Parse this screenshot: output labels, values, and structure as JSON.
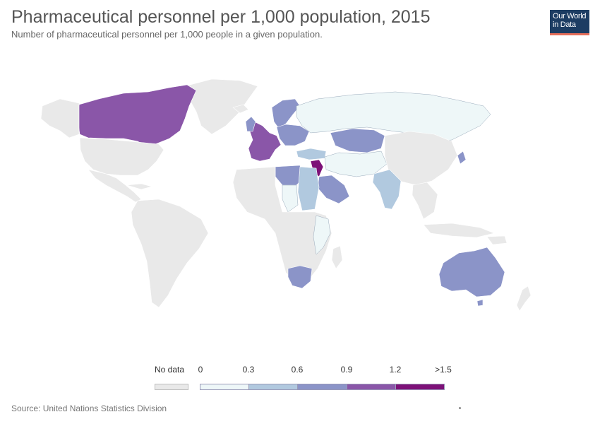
{
  "title": "Pharmaceutical personnel per 1,000 population, 2015",
  "subtitle": "Number of pharmaceutical personnel per 1,000 people in a given population.",
  "logo": {
    "line1": "Our World",
    "line2": "in Data"
  },
  "legend": {
    "no_data_label": "No data",
    "no_data_color": "#e9e9e9",
    "ticks": [
      "0",
      "0.3",
      "0.6",
      "0.9",
      "1.2",
      ">1.5"
    ],
    "bin_colors": [
      "#eef7f8",
      "#b1c9df",
      "#8b94c8",
      "#8a56a8",
      "#7d1178"
    ]
  },
  "source": "Source: United Nations Statistics Division",
  "map_data": {
    "type": "choropleth",
    "colors": {
      "ocean": "#ffffff",
      "no_data": "#e9e9e9",
      "border": "#ffffff"
    }
  }
}
